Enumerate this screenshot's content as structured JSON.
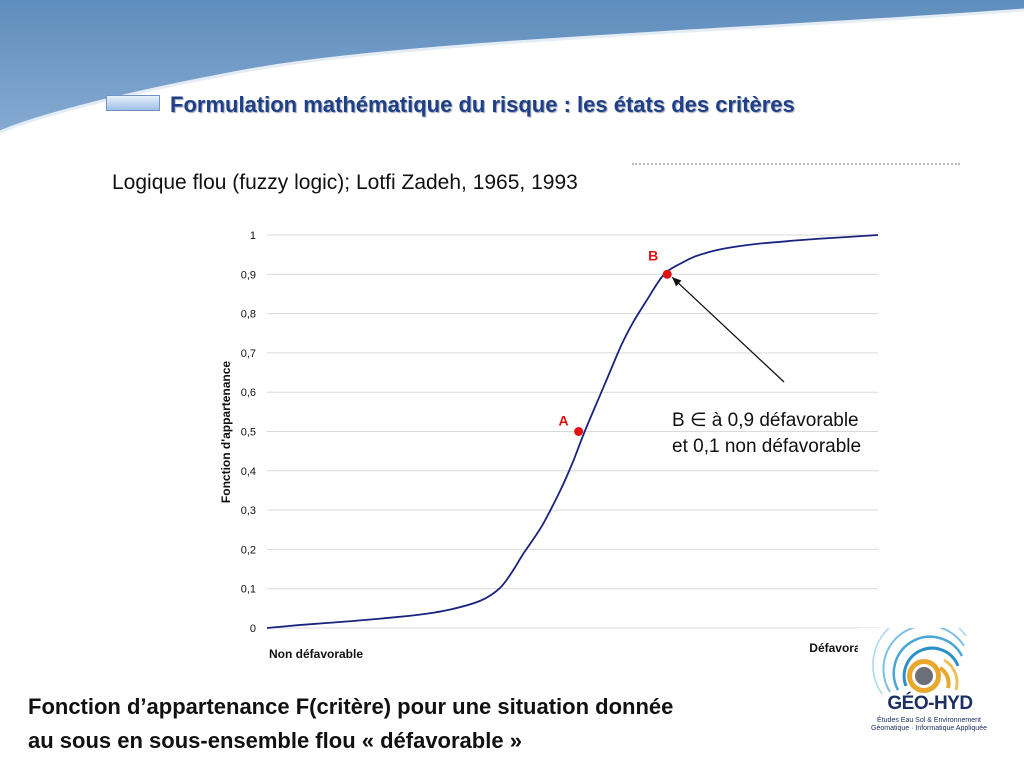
{
  "slide": {
    "title": "Formulation mathématique du risque : les états des critères",
    "subtitle": "Logique flou (fuzzy logic); Lotfi Zadeh, 1965, 1993",
    "annotation": {
      "line1": "B ∈ à 0,9 défavorable",
      "line2": "et 0,1 non défavorable"
    },
    "caption": {
      "line1": "Fonction d’appartenance F(critère) pour une situation donnée",
      "line2": " au sous en sous-ensemble flou « défavorable »"
    },
    "logo": {
      "name": "GÉO-HYD",
      "tagline_line1": "Études Eau Sol & Environnement",
      "tagline_line2": "Géomatique · Informatique Appliquée"
    }
  },
  "colors": {
    "header_blue": "#6f98c4",
    "title_text": "#1f3f86",
    "curve": "#1a237e",
    "points": "#e31212",
    "grid": "#d9d9d9"
  },
  "chart_data": {
    "type": "line",
    "title": "",
    "ylabel": "Fonction d'appartenance",
    "xlabel_left": "Non défavorable",
    "xlabel_right": "Défavorable",
    "ylim": [
      0,
      1
    ],
    "xlim": [
      0,
      1
    ],
    "y_ticks": [
      "0",
      "0,1",
      "0,2",
      "0,3",
      "0,4",
      "0,5",
      "0,6",
      "0,7",
      "0,8",
      "0,9",
      "1"
    ],
    "grid": true,
    "series": [
      {
        "x": [
          0,
          0.05,
          0.1,
          0.15,
          0.2,
          0.25,
          0.3,
          0.35,
          0.38,
          0.4,
          0.42,
          0.45,
          0.48,
          0.5,
          0.52,
          0.55,
          0.58,
          0.6,
          0.62,
          0.65,
          0.68,
          0.7,
          0.72,
          0.75,
          0.8,
          0.85,
          0.9,
          0.95,
          1.0
        ],
        "values": [
          0,
          0.007,
          0.013,
          0.019,
          0.026,
          0.034,
          0.047,
          0.07,
          0.1,
          0.14,
          0.19,
          0.26,
          0.35,
          0.42,
          0.5,
          0.61,
          0.72,
          0.78,
          0.83,
          0.9,
          0.93,
          0.945,
          0.955,
          0.966,
          0.977,
          0.984,
          0.99,
          0.995,
          1.0
        ]
      }
    ],
    "points": [
      {
        "label": "A",
        "x": 0.51,
        "y": 0.5
      },
      {
        "label": "B",
        "x": 0.655,
        "y": 0.9
      }
    ]
  }
}
